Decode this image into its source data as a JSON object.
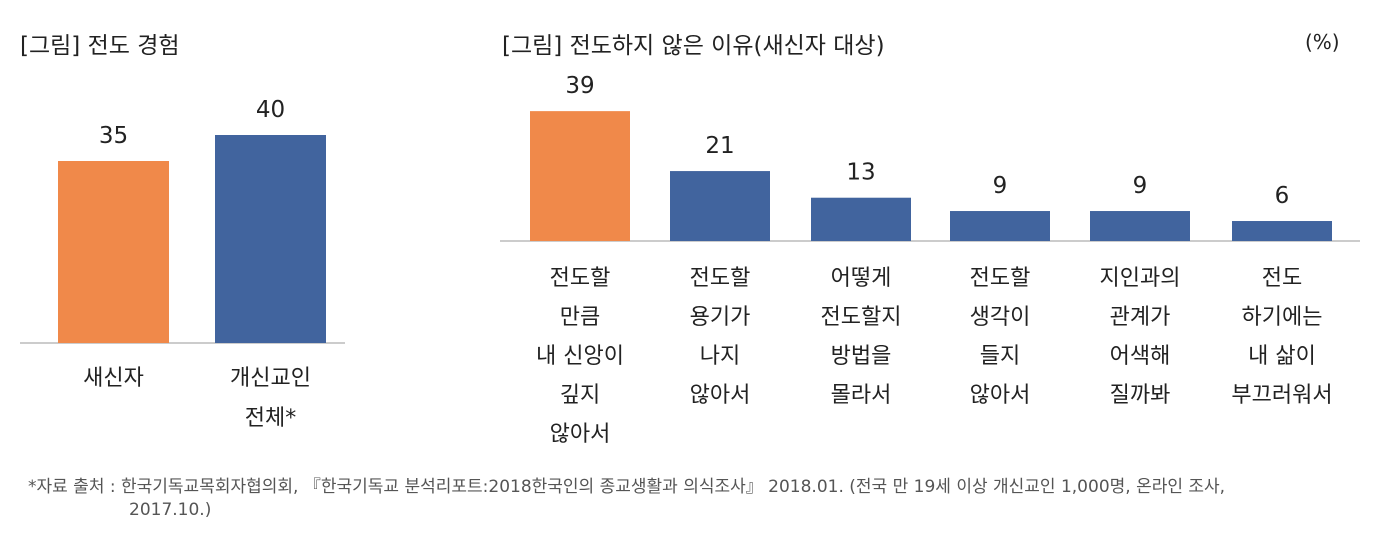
{
  "chart_data": [
    {
      "type": "bar",
      "title": "[그림] 전도 경험",
      "categories": [
        "새신자",
        "개신교인\n전체*"
      ],
      "values": [
        35,
        40
      ],
      "colors": [
        "#F0894A",
        "#41649E"
      ],
      "ylim": [
        0,
        45
      ],
      "grid": false
    },
    {
      "type": "bar",
      "title": "[그림] 전도하지 않은 이유(새신자 대상)",
      "unit": "(%)",
      "categories": [
        "전도할\n만큼\n내 신앙이\n깊지\n않아서",
        "전도할\n용기가\n나지\n않아서",
        "어떻게\n전도할지\n방법을\n몰라서",
        "전도할\n생각이\n들지\n않아서",
        "지인과의\n관계가\n어색해\n질까봐",
        "전도\n하기에는\n내 삶이\n부끄러워서"
      ],
      "values": [
        39,
        21,
        13,
        9,
        9,
        6
      ],
      "colors": [
        "#F0894A",
        "#41649E",
        "#41649E",
        "#41649E",
        "#41649E",
        "#41649E"
      ],
      "ylim": [
        0,
        45
      ],
      "grid": false
    }
  ],
  "footnote": {
    "line1": "*자료 출처 : 한국기독교목회자협의회, 『한국기독교 분석리포트:2018한국인의 종교생활과 의식조사』 2018.01. (전국 만 19세 이상 개신교인 1,000명, 온라인 조사,",
    "line2": "2017.10.)"
  }
}
